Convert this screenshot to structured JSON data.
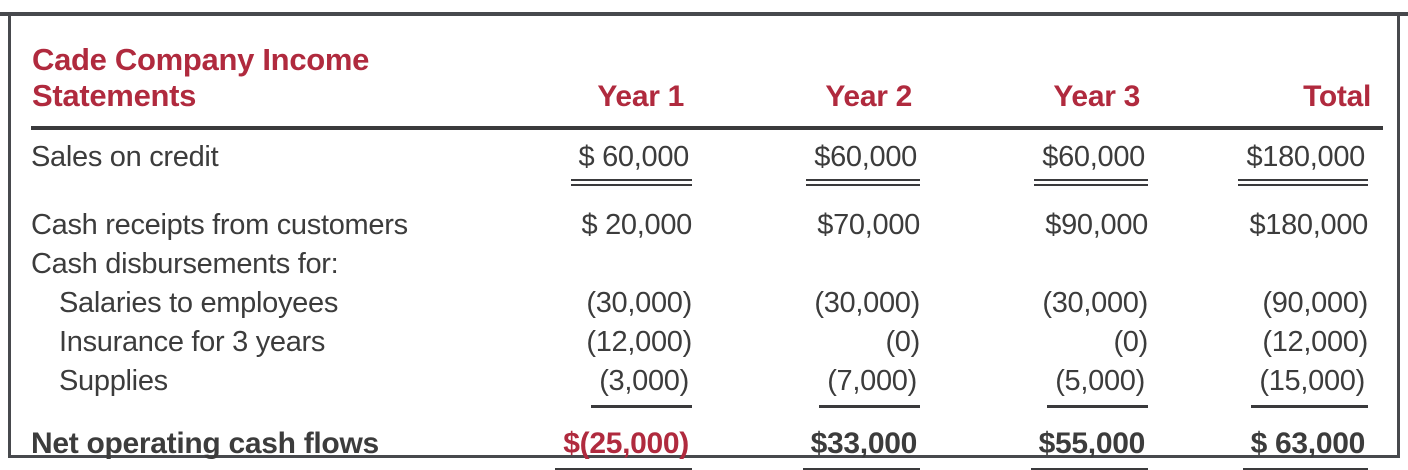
{
  "palette": {
    "accent_red": "#b02a3e",
    "text_gray": "#3c3c3c",
    "rule_dark": "#3a3a3c",
    "frame_dark": "#47494d",
    "background": "#ffffff"
  },
  "statement": {
    "title": "Cade Company Income Statements",
    "columns": [
      "Year 1",
      "Year 2",
      "Year 3",
      "Total"
    ],
    "rows": [
      {
        "label": "Sales on credit",
        "values": [
          "$ 60,000",
          "$60,000",
          "$60,000",
          "$180,000"
        ]
      },
      {
        "label": "Cash receipts from customers",
        "values": [
          "$ 20,000",
          "$70,000",
          "$90,000",
          "$180,000"
        ]
      },
      {
        "label": "Cash disbursements for:",
        "values": [
          "",
          "",
          "",
          ""
        ]
      },
      {
        "label": "Salaries to employees",
        "values": [
          "(30,000)",
          "(30,000)",
          "(30,000)",
          "(90,000)"
        ]
      },
      {
        "label": "Insurance for 3 years",
        "values": [
          "(12,000)",
          "(0)",
          "(0)",
          "(12,000)"
        ]
      },
      {
        "label": "Supplies",
        "values": [
          "(3,000)",
          "(7,000)",
          "(5,000)",
          "(15,000)"
        ]
      },
      {
        "label": "Net operating cash flows",
        "values": [
          "$(25,000)",
          "$33,000",
          "$55,000",
          "$ 63,000"
        ]
      }
    ]
  }
}
